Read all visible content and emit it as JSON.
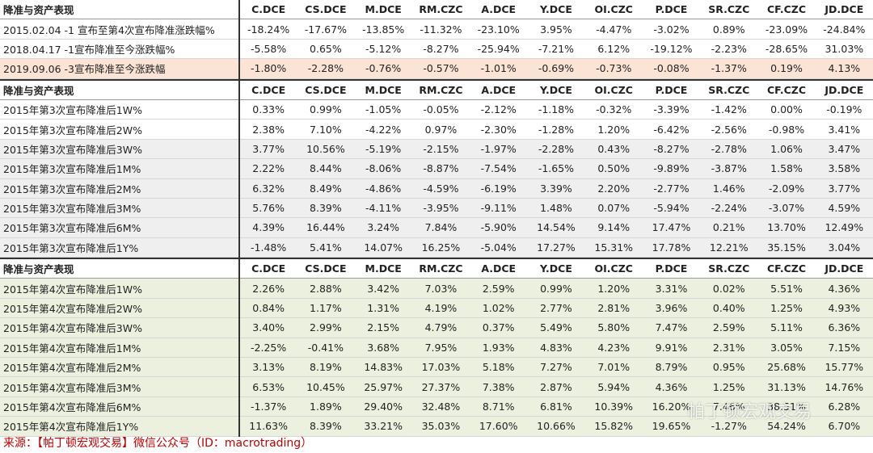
{
  "tables": [
    {
      "header": [
        "降准与资产表现",
        "C.DCE",
        "CS.DCE",
        "M.DCE",
        "RM.CZC",
        "A.DCE",
        "Y.DCE",
        "OI.CZC",
        "P.DCE",
        "SR.CZC",
        "CF.CZC",
        "JD.DCE"
      ],
      "rows": [
        {
          "label": "2015.02.04 -1 宣布至第4次宣布降准涨跌幅%",
          "values": [
            "-18.24%",
            "-17.67%",
            "-13.85%",
            "-11.32%",
            "-23.10%",
            "3.95%",
            "-4.47%",
            "-3.02%",
            "0.89%",
            "-23.09%",
            "-24.84%"
          ]
        },
        {
          "label": "2018.04.17 -1宣布降准至今涨跌幅%",
          "values": [
            "-5.58%",
            "0.65%",
            "-5.12%",
            "-8.27%",
            "-25.94%",
            "-7.21%",
            "6.12%",
            "-19.12%",
            "-2.23%",
            "-28.65%",
            "31.03%"
          ]
        },
        {
          "label": "2019.09.06 -3宣布降准至今涨跌幅",
          "values": [
            "-1.80%",
            "-2.28%",
            "-0.76%",
            "-0.57%",
            "-1.01%",
            "-0.69%",
            "-0.73%",
            "-0.08%",
            "-1.37%",
            "0.19%",
            "4.13%"
          ]
        }
      ]
    },
    {
      "header": [
        "降准与资产表现",
        "C.DCE",
        "CS.DCE",
        "M.DCE",
        "RM.CZC",
        "A.DCE",
        "Y.DCE",
        "OI.CZC",
        "P.DCE",
        "SR.CZC",
        "CF.CZC",
        "JD.DCE"
      ],
      "rows": [
        {
          "label": "2015年第3次宣布降准后1W%",
          "values": [
            "0.33%",
            "0.99%",
            "-1.05%",
            "-0.05%",
            "-2.12%",
            "-1.18%",
            "-0.32%",
            "-3.39%",
            "-1.42%",
            "0.00%",
            "-0.19%"
          ]
        },
        {
          "label": "2015年第3次宣布降准后2W%",
          "values": [
            "2.38%",
            "7.10%",
            "-4.22%",
            "0.97%",
            "-2.30%",
            "-1.28%",
            "1.20%",
            "-6.42%",
            "-2.56%",
            "-0.98%",
            "3.41%"
          ]
        },
        {
          "label": "2015年第3次宣布降准后3W%",
          "values": [
            "3.77%",
            "10.56%",
            "-5.19%",
            "-2.15%",
            "-1.97%",
            "-2.28%",
            "0.43%",
            "-8.27%",
            "-2.78%",
            "1.06%",
            "3.47%"
          ]
        },
        {
          "label": "2015年第3次宣布降准后1M%",
          "values": [
            "2.22%",
            "8.44%",
            "-8.06%",
            "-8.87%",
            "-7.54%",
            "-1.65%",
            "0.50%",
            "-9.89%",
            "-3.87%",
            "1.58%",
            "3.58%"
          ]
        },
        {
          "label": "2015年第3次宣布降准后2M%",
          "values": [
            "6.32%",
            "8.49%",
            "-4.86%",
            "-4.59%",
            "-6.19%",
            "3.39%",
            "2.20%",
            "-2.77%",
            "1.46%",
            "-2.09%",
            "3.77%"
          ]
        },
        {
          "label": "2015年第3次宣布降准后3M%",
          "values": [
            "5.76%",
            "8.39%",
            "-4.11%",
            "-3.95%",
            "-9.11%",
            "1.48%",
            "0.07%",
            "-5.94%",
            "-2.24%",
            "-3.07%",
            "4.59%"
          ]
        },
        {
          "label": "2015年第3次宣布降准后6M%",
          "values": [
            "4.39%",
            "16.44%",
            "3.24%",
            "7.84%",
            "-5.90%",
            "14.54%",
            "9.14%",
            "17.47%",
            "0.21%",
            "13.70%",
            "12.49%"
          ]
        },
        {
          "label": "2015年第3次宣布降准后1Y%",
          "values": [
            "-1.48%",
            "5.41%",
            "14.07%",
            "16.25%",
            "-5.04%",
            "17.27%",
            "15.31%",
            "17.78%",
            "12.21%",
            "35.15%",
            "3.04%"
          ]
        }
      ]
    },
    {
      "header": [
        "降准与资产表现",
        "C.DCE",
        "CS.DCE",
        "M.DCE",
        "RM.CZC",
        "A.DCE",
        "Y.DCE",
        "OI.CZC",
        "P.DCE",
        "SR.CZC",
        "CF.CZC",
        "JD.DCE"
      ],
      "rows": [
        {
          "label": "2015年第4次宣布降准后1W%",
          "values": [
            "2.26%",
            "2.88%",
            "3.42%",
            "7.03%",
            "2.59%",
            "0.99%",
            "1.20%",
            "3.31%",
            "0.02%",
            "5.51%",
            "4.36%"
          ]
        },
        {
          "label": "2015年第4次宣布降准后2W%",
          "values": [
            "0.84%",
            "1.17%",
            "1.31%",
            "4.19%",
            "1.02%",
            "2.77%",
            "2.81%",
            "3.96%",
            "0.40%",
            "1.25%",
            "4.93%"
          ]
        },
        {
          "label": "2015年第4次宣布降准后3W%",
          "values": [
            "3.40%",
            "2.99%",
            "2.15%",
            "4.79%",
            "0.37%",
            "5.49%",
            "5.80%",
            "7.47%",
            "2.59%",
            "5.11%",
            "6.36%"
          ]
        },
        {
          "label": "2015年第4次宣布降准后1M%",
          "values": [
            "-2.25%",
            "-0.41%",
            "3.68%",
            "7.95%",
            "1.93%",
            "4.83%",
            "4.23%",
            "9.91%",
            "2.31%",
            "3.05%",
            "7.15%"
          ]
        },
        {
          "label": "2015年第4次宣布降准后2M%",
          "values": [
            "3.13%",
            "8.19%",
            "14.83%",
            "17.03%",
            "5.18%",
            "7.27%",
            "7.01%",
            "8.79%",
            "0.95%",
            "25.68%",
            "15.77%"
          ]
        },
        {
          "label": "2015年第4次宣布降准后3M%",
          "values": [
            "6.53%",
            "10.45%",
            "25.97%",
            "27.37%",
            "7.38%",
            "2.87%",
            "5.94%",
            "4.36%",
            "1.25%",
            "31.13%",
            "14.76%"
          ]
        },
        {
          "label": "2015年第4次宣布降准后6M%",
          "values": [
            "-1.37%",
            "1.89%",
            "29.40%",
            "32.48%",
            "8.71%",
            "6.81%",
            "10.39%",
            "16.20%",
            "7.46%",
            "38.51%",
            "6.28%"
          ]
        },
        {
          "label": "2015年第4次宣布降准后1Y%",
          "values": [
            "11.63%",
            "8.39%",
            "33.21%",
            "35.03%",
            "17.60%",
            "10.66%",
            "15.82%",
            "19.65%",
            "-1.27%",
            "54.24%",
            "6.70%"
          ]
        }
      ]
    }
  ],
  "watermark": "帕丁顿宏观交易",
  "footer": "来源：【帕丁顿宏观交易】微信公众号（ID：macrotrading）"
}
